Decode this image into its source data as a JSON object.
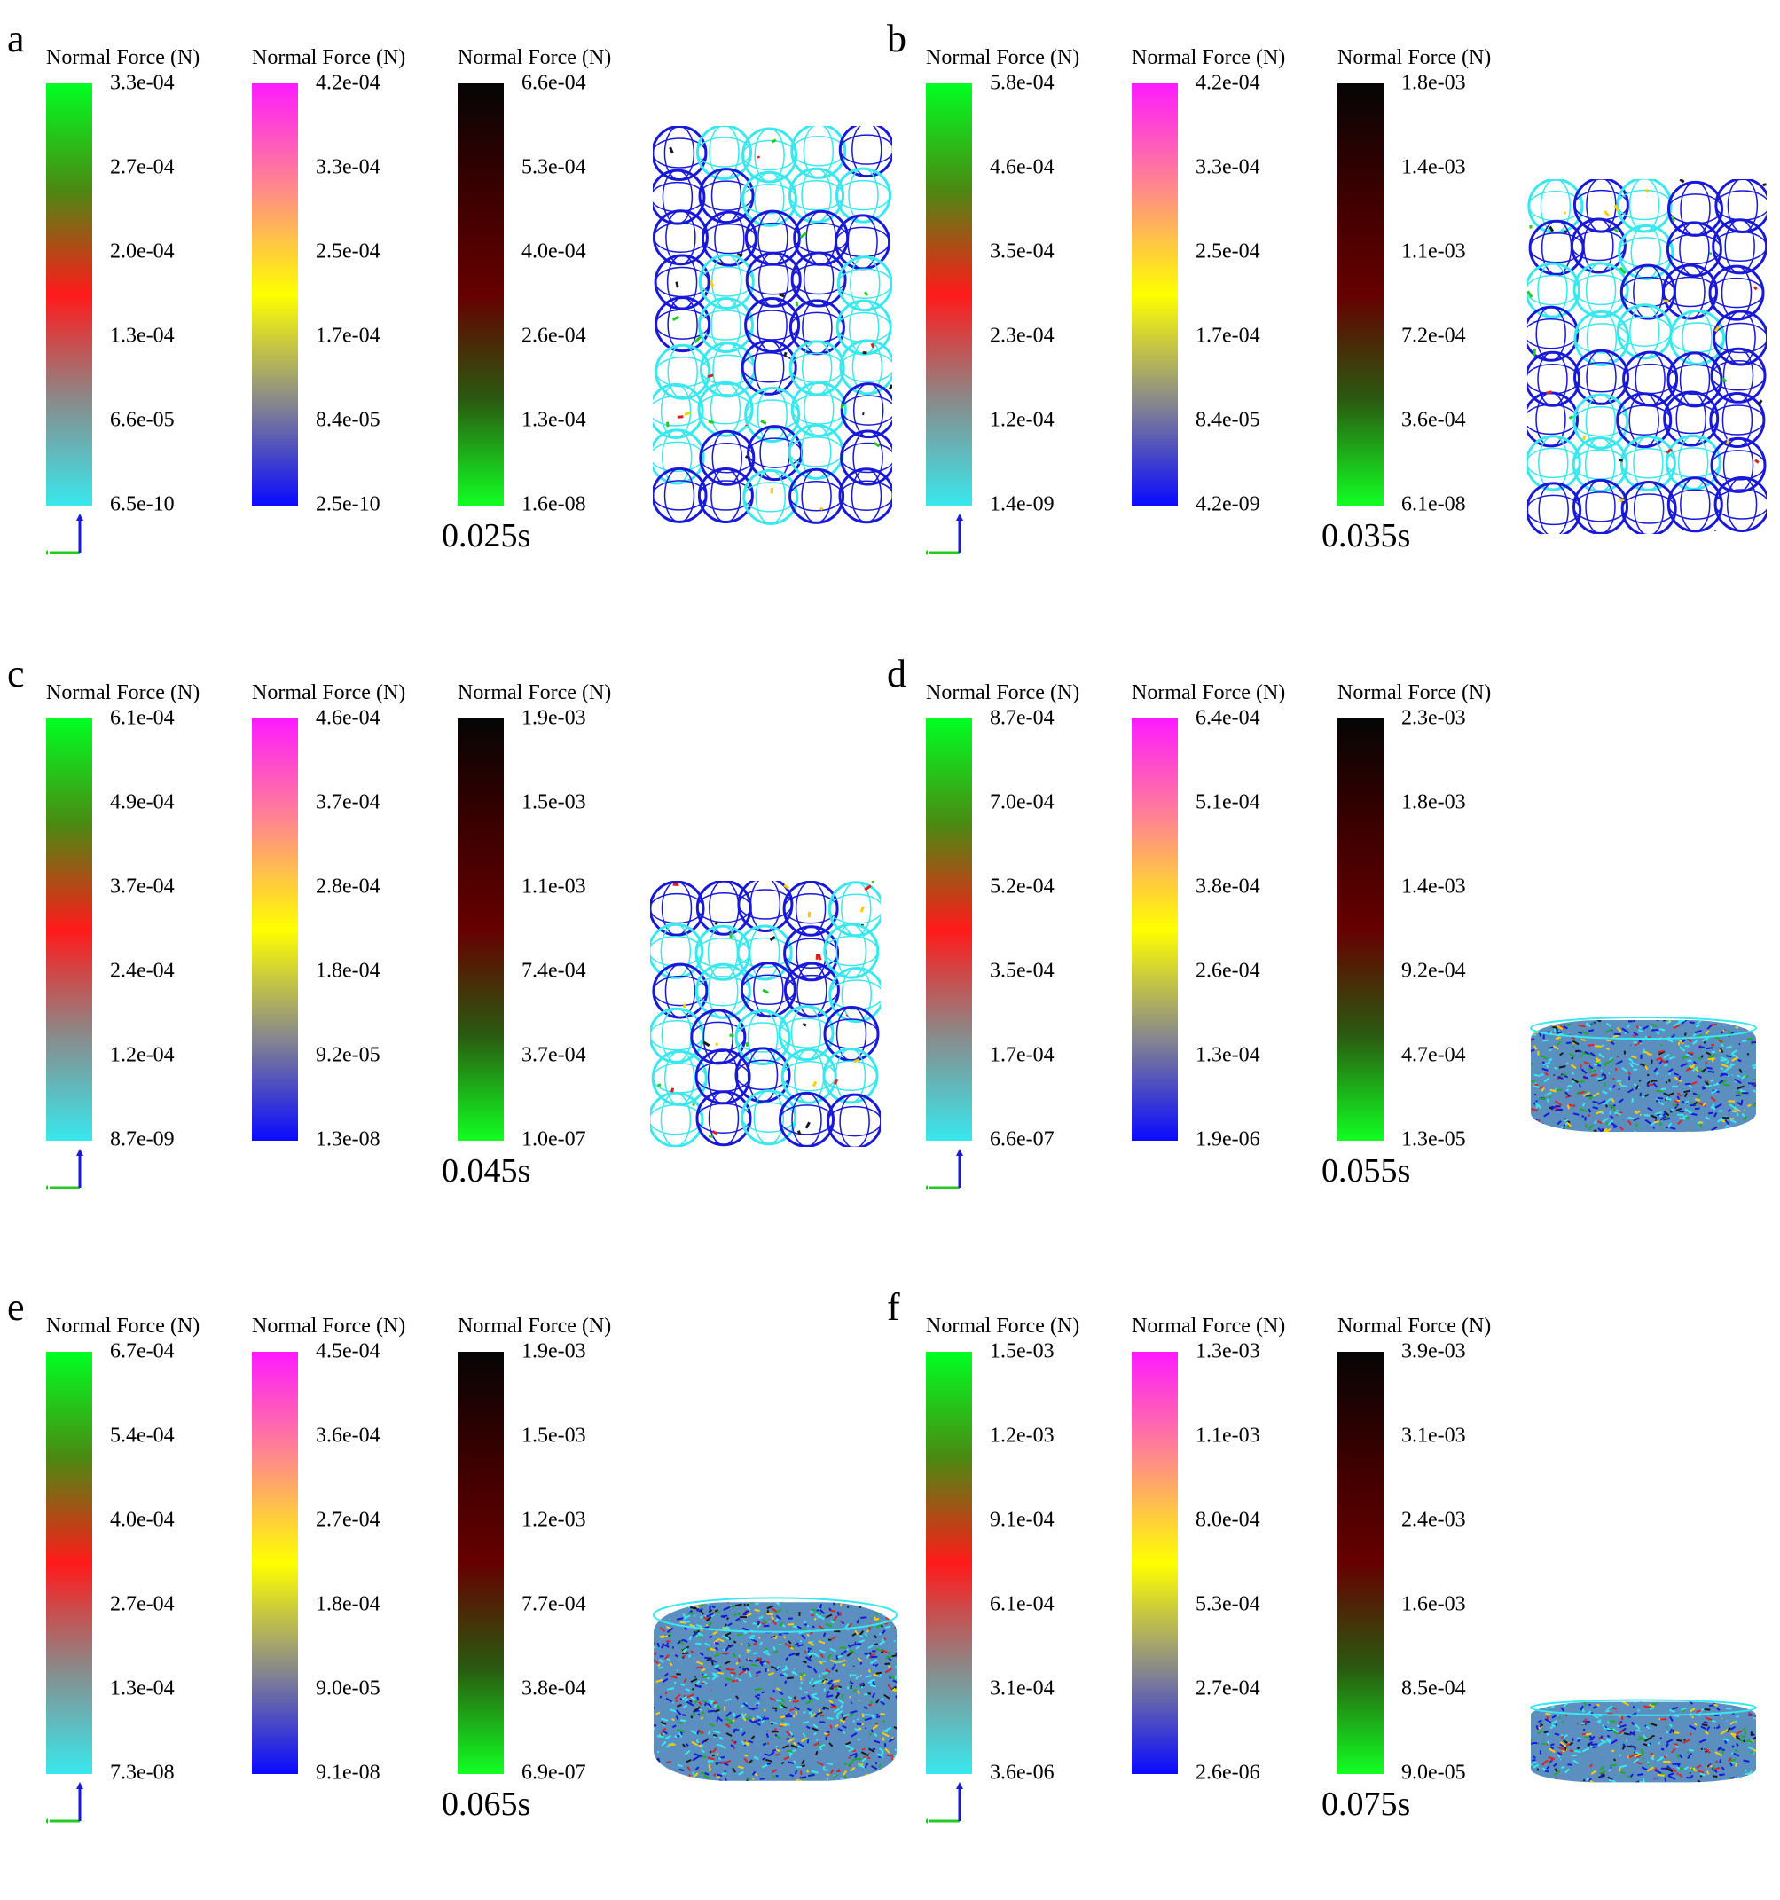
{
  "figure": {
    "panels": [
      {
        "letter": "a",
        "time": "0.025s",
        "shape": "tall",
        "legends": [
          {
            "title": "Normal Force (N)",
            "scale": "green",
            "ticks": [
              "3.3e-04",
              "2.7e-04",
              "2.0e-04",
              "1.3e-04",
              "6.6e-05",
              "6.5e-10"
            ]
          },
          {
            "title": "Normal Force (N)",
            "scale": "magenta",
            "ticks": [
              "4.2e-04",
              "3.3e-04",
              "2.5e-04",
              "1.7e-04",
              "8.4e-05",
              "2.5e-10"
            ]
          },
          {
            "title": "Normal Force (N)",
            "scale": "black",
            "ticks": [
              "6.6e-04",
              "5.3e-04",
              "4.0e-04",
              "2.6e-04",
              "1.3e-04",
              "1.6e-08"
            ]
          }
        ]
      },
      {
        "letter": "b",
        "time": "0.035s",
        "shape": "tall2",
        "legends": [
          {
            "title": "Normal Force (N)",
            "scale": "green",
            "ticks": [
              "5.8e-04",
              "4.6e-04",
              "3.5e-04",
              "2.3e-04",
              "1.2e-04",
              "1.4e-09"
            ]
          },
          {
            "title": "Normal Force (N)",
            "scale": "magenta",
            "ticks": [
              "4.2e-04",
              "3.3e-04",
              "2.5e-04",
              "1.7e-04",
              "8.4e-05",
              "4.2e-09"
            ]
          },
          {
            "title": "Normal Force (N)",
            "scale": "black",
            "ticks": [
              "1.8e-03",
              "1.4e-03",
              "1.1e-03",
              "7.2e-04",
              "3.6e-04",
              "6.1e-08"
            ]
          }
        ]
      },
      {
        "letter": "c",
        "time": "0.045s",
        "shape": "square",
        "legends": [
          {
            "title": "Normal Force (N)",
            "scale": "green",
            "ticks": [
              "6.1e-04",
              "4.9e-04",
              "3.7e-04",
              "2.4e-04",
              "1.2e-04",
              "8.7e-09"
            ]
          },
          {
            "title": "Normal Force (N)",
            "scale": "magenta",
            "ticks": [
              "4.6e-04",
              "3.7e-04",
              "2.8e-04",
              "1.8e-04",
              "9.2e-05",
              "1.3e-08"
            ]
          },
          {
            "title": "Normal Force (N)",
            "scale": "black",
            "ticks": [
              "1.9e-03",
              "1.5e-03",
              "1.1e-03",
              "7.4e-04",
              "3.7e-04",
              "1.0e-07"
            ]
          }
        ]
      },
      {
        "letter": "d",
        "time": "0.055s",
        "shape": "flat",
        "legends": [
          {
            "title": "Normal Force (N)",
            "scale": "green",
            "ticks": [
              "8.7e-04",
              "7.0e-04",
              "5.2e-04",
              "3.5e-04",
              "1.7e-04",
              "6.6e-07"
            ]
          },
          {
            "title": "Normal Force (N)",
            "scale": "magenta",
            "ticks": [
              "6.4e-04",
              "5.1e-04",
              "3.8e-04",
              "2.6e-04",
              "1.3e-04",
              "1.9e-06"
            ]
          },
          {
            "title": "Normal Force (N)",
            "scale": "black",
            "ticks": [
              "2.3e-03",
              "1.8e-03",
              "1.4e-03",
              "9.2e-04",
              "4.7e-04",
              "1.3e-05"
            ]
          }
        ]
      },
      {
        "letter": "e",
        "time": "0.065s",
        "shape": "wide",
        "legends": [
          {
            "title": "Normal Force (N)",
            "scale": "green",
            "ticks": [
              "6.7e-04",
              "5.4e-04",
              "4.0e-04",
              "2.7e-04",
              "1.3e-04",
              "7.3e-08"
            ]
          },
          {
            "title": "Normal Force (N)",
            "scale": "magenta",
            "ticks": [
              "4.5e-04",
              "3.6e-04",
              "2.7e-04",
              "1.8e-04",
              "9.0e-05",
              "9.1e-08"
            ]
          },
          {
            "title": "Normal Force (N)",
            "scale": "black",
            "ticks": [
              "1.9e-03",
              "1.5e-03",
              "1.2e-03",
              "7.7e-04",
              "3.8e-04",
              "6.9e-07"
            ]
          }
        ]
      },
      {
        "letter": "f",
        "time": "0.075s",
        "shape": "disc",
        "legends": [
          {
            "title": "Normal Force (N)",
            "scale": "green",
            "ticks": [
              "1.5e-03",
              "1.2e-03",
              "9.1e-04",
              "6.1e-04",
              "3.1e-04",
              "3.6e-06"
            ]
          },
          {
            "title": "Normal Force (N)",
            "scale": "magenta",
            "ticks": [
              "1.3e-03",
              "1.1e-03",
              "8.0e-04",
              "5.3e-04",
              "2.7e-04",
              "2.6e-06"
            ]
          },
          {
            "title": "Normal Force (N)",
            "scale": "black",
            "ticks": [
              "3.9e-03",
              "3.1e-03",
              "2.4e-03",
              "1.6e-03",
              "8.5e-04",
              "9.0e-05"
            ]
          }
        ]
      }
    ],
    "colors": {
      "cyan": "#38e8ee",
      "blue": "#1818d8",
      "green_scale": [
        "#00ff22",
        "#4a8a12",
        "#ff1a1a",
        "#8a8a8a",
        "#38e8ee"
      ],
      "magenta_scale": [
        "#ff1aff",
        "#ff8a8a",
        "#ffff00",
        "#8a8a8a",
        "#0a0aff"
      ],
      "black_scale": [
        "#050505",
        "#3a0000",
        "#660000",
        "#2a5a10",
        "#11ff22"
      ]
    }
  }
}
